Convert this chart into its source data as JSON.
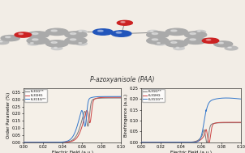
{
  "title": "P-azoxyanisole (PAA)",
  "title_fontsize": 5.5,
  "left_plot": {
    "ylabel": "Order Parameter (%)",
    "xlabel": "Electric Field (a.u.)",
    "ylim": [
      0.0,
      0.38
    ],
    "xlim": [
      0.0,
      0.1
    ],
    "yticks": [
      0.0,
      0.05,
      0.1,
      0.15,
      0.2,
      0.25,
      0.3,
      0.35
    ],
    "xticks": [
      0.0,
      0.02,
      0.04,
      0.06,
      0.08,
      0.1
    ],
    "legend": [
      "6-31G**",
      "6-31HG",
      "6-311G**"
    ]
  },
  "right_plot": {
    "ylabel": "Birefringence (a.u.)",
    "xlabel": "Electric Field (a.u.)",
    "ylim": [
      0.0,
      0.25
    ],
    "xlim": [
      0.0,
      0.1
    ],
    "yticks": [
      0.0,
      0.05,
      0.1,
      0.15,
      0.2,
      0.25
    ],
    "xticks": [
      0.0,
      0.02,
      0.04,
      0.06,
      0.08,
      0.1
    ],
    "legend": [
      "6-31G**",
      "6-31HG",
      "6-311G**"
    ]
  },
  "colors": {
    "6-31G**": "#777777",
    "6-31HG": "#cc4444",
    "6-311G**": "#3377cc"
  },
  "bg_color": "#f2ede6",
  "plot_bg": "#f5f0e8"
}
